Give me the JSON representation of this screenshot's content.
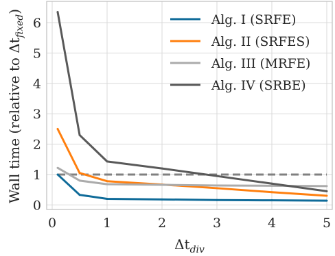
{
  "chart_data": {
    "type": "line",
    "xlabel_base": "Δt",
    "xlabel_sub": "div",
    "ylabel_base": "Wall time (relative to Δt",
    "ylabel_sub": "fixed",
    "ylabel_end": ")",
    "xlim": [
      -0.1,
      5.1
    ],
    "ylim": [
      -0.15,
      6.7
    ],
    "xticks": [
      0,
      1,
      2,
      3,
      4,
      5
    ],
    "yticks": [
      0,
      1,
      2,
      3,
      4,
      5,
      6
    ],
    "grid": true,
    "legend_position": "top-right",
    "x": [
      0.1,
      0.5,
      1,
      2,
      3,
      4,
      5
    ],
    "series": [
      {
        "name": "Alg. I (SRFE)",
        "color": "#0f6b99",
        "values": [
          1.0,
          0.33,
          0.2,
          0.18,
          0.16,
          0.15,
          0.14
        ]
      },
      {
        "name": "Alg. II (SRFES)",
        "color": "#ff7f0e",
        "values": [
          2.5,
          1.05,
          0.78,
          0.67,
          0.55,
          0.42,
          0.3
        ]
      },
      {
        "name": "Alg. III (MRFE)",
        "color": "#ababab",
        "values": [
          1.22,
          0.8,
          0.68,
          0.66,
          0.64,
          0.63,
          0.62
        ]
      },
      {
        "name": "Alg. IV (SRBE)",
        "color": "#595959",
        "values": [
          6.35,
          2.3,
          1.43,
          1.2,
          0.95,
          0.7,
          0.45
        ]
      }
    ],
    "reference_line": {
      "y": 1.0,
      "color": "#808080",
      "style": "dashed"
    }
  }
}
